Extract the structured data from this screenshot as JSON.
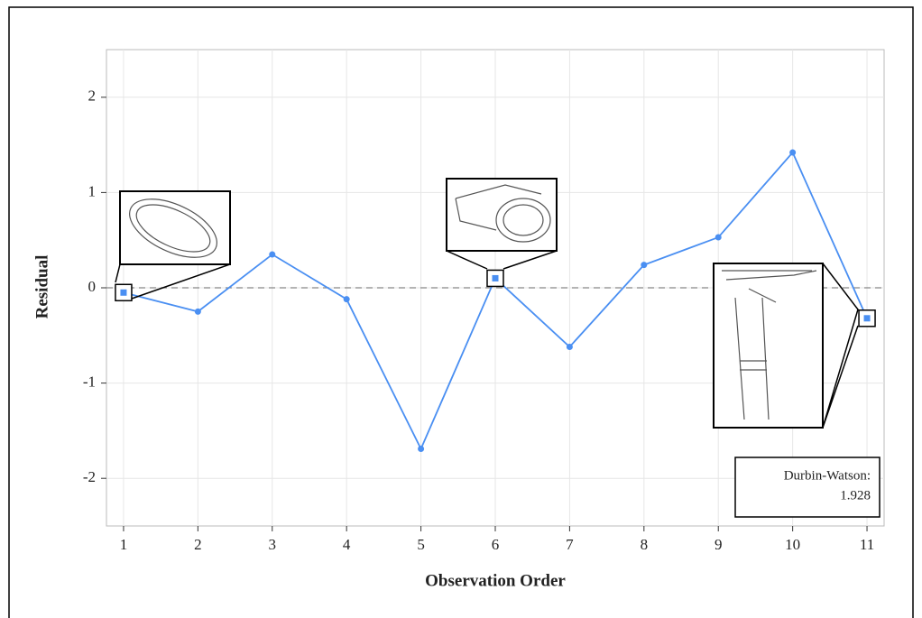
{
  "chart_data": {
    "type": "line",
    "x_label": "Observation Order",
    "y_label": "Residual",
    "x": [
      1,
      2,
      3,
      4,
      5,
      6,
      7,
      8,
      9,
      10,
      11
    ],
    "series": [
      {
        "color": "#4a8ff2",
        "values": [
          -0.05,
          -0.25,
          0.35,
          -0.12,
          -1.69,
          0.1,
          -0.62,
          0.24,
          0.53,
          1.42,
          -0.32
        ]
      }
    ],
    "highlight": [
      0,
      5,
      10
    ],
    "xlim": [
      0.77,
      11.23
    ],
    "ylim": [
      -2.5,
      2.5
    ],
    "xticks": [
      1,
      2,
      3,
      4,
      5,
      6,
      7,
      8,
      9,
      10,
      11
    ],
    "yticks": [
      -2,
      -1,
      0,
      1,
      2
    ],
    "reference_line": 0,
    "grid": true,
    "annotation": {
      "label": "Durbin-Watson:",
      "value": "1.928"
    }
  }
}
